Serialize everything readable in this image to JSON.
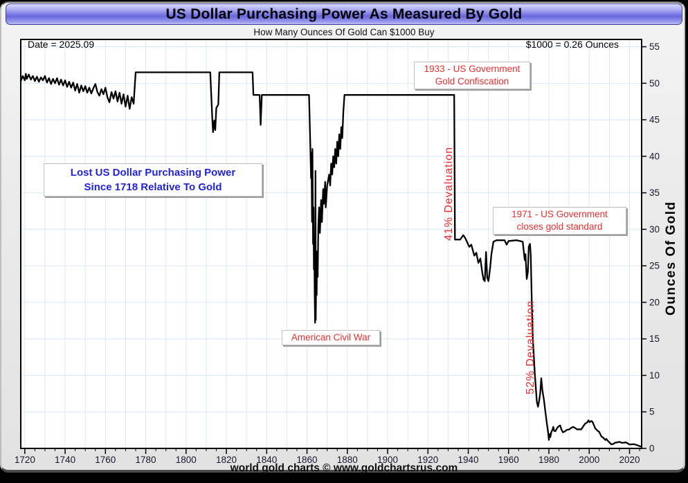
{
  "header": {
    "title": "US Dollar Purchasing Power As Measured By Gold",
    "subtitle": "How Many Ounces Of Gold Can $1000 Buy"
  },
  "footer": {
    "text": "world gold charts © www.goldchartsrus.com"
  },
  "colors": {
    "accent_red": "#ee2c2c",
    "accent_blue": "#2222dd",
    "line": "#000000",
    "grid": "#dbe8f7",
    "plot_background": "#ffffff",
    "panel_background": "#ebebeb",
    "title_gradient_mid": "#6767dd"
  },
  "chart_data": {
    "type": "line",
    "title": "US Dollar Purchasing Power As Measured By Gold",
    "subtitle": "How Many Ounces Of Gold Can $1000 Buy",
    "xlabel": "",
    "ylabel_right": "Ounces Of Gold",
    "xlim": [
      1718,
      2026
    ],
    "ylim": [
      0,
      56
    ],
    "x_major_ticks": [
      1720,
      1740,
      1760,
      1780,
      1800,
      1820,
      1840,
      1860,
      1880,
      1900,
      1920,
      1940,
      1960,
      1980,
      2000,
      2020
    ],
    "x_minor_step": 5,
    "y_major_ticks": [
      0,
      5,
      10,
      15,
      20,
      25,
      30,
      35,
      40,
      45,
      50,
      55
    ],
    "grid": {
      "x_step": 10,
      "y_step": 5,
      "color": "#dbe8f7"
    },
    "legend": "none",
    "annotations": {
      "date": {
        "text": "Date = 2025.09",
        "color": "#000000"
      },
      "current": {
        "text": "$1000 = 0.26 Ounces",
        "color": "#000000"
      },
      "lost_power": {
        "line1": "Lost US Dollar Purchasing Power",
        "line2": "Since 1718 Relative To Gold",
        "color": "#2222dd"
      },
      "confiscation_1933": {
        "line1": "1933 - US Government",
        "line2": "Gold Confiscation",
        "color": "#ee2c2c",
        "x": 1933
      },
      "devaluation_41": {
        "text": "41% Devaluation",
        "color": "#ee2c2c",
        "rotation": -90,
        "x": 1931
      },
      "gold_standard_1971": {
        "line1": "1971 - US Government",
        "line2": "closes gold standard",
        "color": "#ee2c2c",
        "x": 1971
      },
      "devaluation_52": {
        "text": "52% Devaluation",
        "color": "#ee2c2c",
        "rotation": -90,
        "x": 1969
      },
      "civil_war": {
        "text": "American Civil War",
        "color": "#ee2c2c",
        "x": 1863
      }
    },
    "series": [
      {
        "name": "Ounces of gold $1000 can buy",
        "color": "#000000",
        "points": [
          [
            1718,
            50.3
          ],
          [
            1719,
            51.0
          ],
          [
            1720,
            50.4
          ],
          [
            1720.5,
            51.3
          ],
          [
            1721,
            50.6
          ],
          [
            1722,
            51.2
          ],
          [
            1723,
            50.5
          ],
          [
            1724,
            51.0
          ],
          [
            1725,
            50.3
          ],
          [
            1726,
            50.9
          ],
          [
            1727,
            50.2
          ],
          [
            1728,
            50.8
          ],
          [
            1729,
            50.4
          ],
          [
            1730,
            51.0
          ],
          [
            1731,
            50.1
          ],
          [
            1732,
            50.7
          ],
          [
            1733,
            49.9
          ],
          [
            1734,
            50.6
          ],
          [
            1735,
            50.0
          ],
          [
            1736,
            50.7
          ],
          [
            1737,
            49.8
          ],
          [
            1738,
            50.5
          ],
          [
            1739,
            49.7
          ],
          [
            1740,
            50.4
          ],
          [
            1741,
            49.5
          ],
          [
            1742,
            50.2
          ],
          [
            1743,
            49.4
          ],
          [
            1744,
            50.1
          ],
          [
            1745,
            49.0
          ],
          [
            1746,
            49.9
          ],
          [
            1747,
            48.7
          ],
          [
            1748,
            49.7
          ],
          [
            1749,
            48.9
          ],
          [
            1750,
            49.6
          ],
          [
            1751,
            48.7
          ],
          [
            1752,
            49.4
          ],
          [
            1753,
            48.6
          ],
          [
            1754,
            49.3
          ],
          [
            1755,
            49.9
          ],
          [
            1756,
            48.8
          ],
          [
            1757,
            48.3
          ],
          [
            1758,
            49.2
          ],
          [
            1759,
            48.5
          ],
          [
            1760,
            49.4
          ],
          [
            1761,
            48.1
          ],
          [
            1762,
            47.4
          ],
          [
            1763,
            48.8
          ],
          [
            1764,
            47.9
          ],
          [
            1765,
            48.9
          ],
          [
            1766,
            47.5
          ],
          [
            1767,
            48.7
          ],
          [
            1768,
            47.2
          ],
          [
            1769,
            48.5
          ],
          [
            1770,
            46.8
          ],
          [
            1771,
            48.3
          ],
          [
            1772,
            46.5
          ],
          [
            1773,
            48.1
          ],
          [
            1774,
            47.2
          ],
          [
            1775,
            51.5
          ],
          [
            1790,
            51.5
          ],
          [
            1805,
            51.5
          ],
          [
            1812,
            51.5
          ],
          [
            1813,
            45.2
          ],
          [
            1813.4,
            43.3
          ],
          [
            1814,
            44.9
          ],
          [
            1814.5,
            43.6
          ],
          [
            1815,
            46.6
          ],
          [
            1816,
            47.1
          ],
          [
            1816.5,
            51.5
          ],
          [
            1825,
            51.5
          ],
          [
            1833,
            51.5
          ],
          [
            1833.4,
            48.4
          ],
          [
            1836.5,
            48.4
          ],
          [
            1837,
            44.3
          ],
          [
            1837.6,
            48.4
          ],
          [
            1850,
            48.4
          ],
          [
            1861,
            48.4
          ],
          [
            1861.6,
            42.0
          ],
          [
            1862,
            37.0
          ],
          [
            1862.2,
            40.5
          ],
          [
            1862.5,
            31.0
          ],
          [
            1862.7,
            41.0
          ],
          [
            1863,
            28.0
          ],
          [
            1863.2,
            33.0
          ],
          [
            1863.4,
            24.5
          ],
          [
            1863.6,
            29.0
          ],
          [
            1863.8,
            21.5
          ],
          [
            1864,
            17.2
          ],
          [
            1864.2,
            38.0
          ],
          [
            1864.35,
            17.6
          ],
          [
            1864.6,
            24.0
          ],
          [
            1864.8,
            21.0
          ],
          [
            1865,
            27.0
          ],
          [
            1865.3,
            23.5
          ],
          [
            1865.6,
            30.5
          ],
          [
            1866,
            33.0
          ],
          [
            1866.4,
            29.5
          ],
          [
            1867,
            34.0
          ],
          [
            1867.4,
            31.0
          ],
          [
            1868,
            35.5
          ],
          [
            1868.4,
            33.5
          ],
          [
            1869,
            36.5
          ],
          [
            1869.3,
            33.0
          ],
          [
            1870,
            36.0
          ],
          [
            1871,
            37.5
          ],
          [
            1871.5,
            36.0
          ],
          [
            1872,
            39.0
          ],
          [
            1872.5,
            37.5
          ],
          [
            1873,
            40.0
          ],
          [
            1873.5,
            38.5
          ],
          [
            1874,
            41.0
          ],
          [
            1874.5,
            39.0
          ],
          [
            1875,
            42.0
          ],
          [
            1875.5,
            40.0
          ],
          [
            1876,
            43.0
          ],
          [
            1876.5,
            41.0
          ],
          [
            1877,
            44.0
          ],
          [
            1877.5,
            42.5
          ],
          [
            1878,
            46.0
          ],
          [
            1878.6,
            48.4
          ],
          [
            1890,
            48.4
          ],
          [
            1910,
            48.4
          ],
          [
            1933,
            48.4
          ],
          [
            1933.4,
            28.6
          ],
          [
            1936,
            28.6
          ],
          [
            1937.5,
            29.2
          ],
          [
            1938.5,
            28.8
          ],
          [
            1939.5,
            28.2
          ],
          [
            1940.5,
            27.6
          ],
          [
            1941.5,
            27.9
          ],
          [
            1943,
            26.4
          ],
          [
            1944,
            26.8
          ],
          [
            1945,
            25.4
          ],
          [
            1946,
            26.0
          ],
          [
            1947,
            24.0
          ],
          [
            1947.6,
            23.1
          ],
          [
            1948.2,
            22.9
          ],
          [
            1948.8,
            26.9
          ],
          [
            1949.4,
            23.4
          ],
          [
            1950,
            22.9
          ],
          [
            1950.8,
            24.6
          ],
          [
            1951.5,
            26.6
          ],
          [
            1952.5,
            28.3
          ],
          [
            1954,
            28.5
          ],
          [
            1958,
            28.5
          ],
          [
            1959,
            27.9
          ],
          [
            1960,
            28.4
          ],
          [
            1964,
            28.5
          ],
          [
            1967,
            28.3
          ],
          [
            1968,
            25.8
          ],
          [
            1968.4,
            26.6
          ],
          [
            1969,
            23.2
          ],
          [
            1969.6,
            24.2
          ],
          [
            1970,
            27.6
          ],
          [
            1970.6,
            28.0
          ],
          [
            1971,
            26.5
          ],
          [
            1971.5,
            20.0
          ],
          [
            1972,
            15.3
          ],
          [
            1973,
            10.3
          ],
          [
            1974,
            6.4
          ],
          [
            1974.6,
            5.7
          ],
          [
            1975.2,
            6.6
          ],
          [
            1975.7,
            7.6
          ],
          [
            1976.2,
            9.6
          ],
          [
            1976.8,
            7.9
          ],
          [
            1977.5,
            6.7
          ],
          [
            1978.3,
            4.9
          ],
          [
            1979,
            3.4
          ],
          [
            1979.6,
            2.2
          ],
          [
            1980,
            1.17
          ],
          [
            1980.3,
            1.95
          ],
          [
            1980.7,
            1.55
          ],
          [
            1981.2,
            2.25
          ],
          [
            1981.7,
            2.5
          ],
          [
            1982.2,
            2.95
          ],
          [
            1982.6,
            2.4
          ],
          [
            1983.2,
            2.35
          ],
          [
            1983.8,
            2.65
          ],
          [
            1984.4,
            2.9
          ],
          [
            1985,
            3.05
          ],
          [
            1985.6,
            3.15
          ],
          [
            1986.2,
            2.6
          ],
          [
            1987,
            2.2
          ],
          [
            1988,
            2.35
          ],
          [
            1989,
            2.55
          ],
          [
            1990,
            2.6
          ],
          [
            1991,
            2.8
          ],
          [
            1992,
            2.95
          ],
          [
            1993,
            2.8
          ],
          [
            1994,
            2.6
          ],
          [
            1995,
            2.62
          ],
          [
            1996,
            2.6
          ],
          [
            1997,
            3.0
          ],
          [
            1998,
            3.4
          ],
          [
            1999,
            3.55
          ],
          [
            1999.6,
            3.85
          ],
          [
            2000.2,
            3.6
          ],
          [
            2001,
            3.75
          ],
          [
            2001.6,
            3.65
          ],
          [
            2002.3,
            3.2
          ],
          [
            2003,
            2.75
          ],
          [
            2004,
            2.45
          ],
          [
            2005,
            2.25
          ],
          [
            2006,
            1.65
          ],
          [
            2007,
            1.45
          ],
          [
            2008,
            1.15
          ],
          [
            2008.5,
            1.3
          ],
          [
            2009.2,
            1.05
          ],
          [
            2010,
            0.82
          ],
          [
            2011,
            0.55
          ],
          [
            2012,
            0.62
          ],
          [
            2013,
            0.8
          ],
          [
            2014,
            0.82
          ],
          [
            2015,
            0.9
          ],
          [
            2016,
            0.78
          ],
          [
            2017,
            0.77
          ],
          [
            2018,
            0.83
          ],
          [
            2019,
            0.7
          ],
          [
            2020,
            0.53
          ],
          [
            2021,
            0.56
          ],
          [
            2022,
            0.58
          ],
          [
            2023,
            0.51
          ],
          [
            2024,
            0.42
          ],
          [
            2025,
            0.3
          ],
          [
            2025.7,
            0.26
          ]
        ]
      }
    ]
  }
}
